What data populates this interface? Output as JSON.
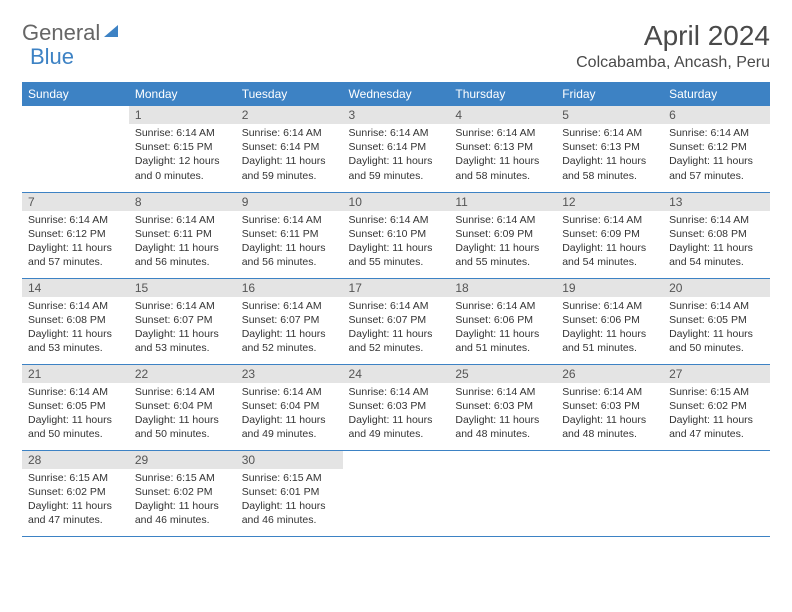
{
  "logo": {
    "general": "General",
    "blue": "Blue"
  },
  "title": "April 2024",
  "location": "Colcabamba, Ancash, Peru",
  "colors": {
    "header_bg": "#3d82c4",
    "header_text": "#ffffff",
    "daynum_bg": "#e4e4e4",
    "border": "#3d82c4",
    "text": "#333333"
  },
  "weekdays": [
    "Sunday",
    "Monday",
    "Tuesday",
    "Wednesday",
    "Thursday",
    "Friday",
    "Saturday"
  ],
  "weeks": [
    [
      {
        "day": "",
        "sunrise": "",
        "sunset": "",
        "daylight": ""
      },
      {
        "day": "1",
        "sunrise": "Sunrise: 6:14 AM",
        "sunset": "Sunset: 6:15 PM",
        "daylight": "Daylight: 12 hours and 0 minutes."
      },
      {
        "day": "2",
        "sunrise": "Sunrise: 6:14 AM",
        "sunset": "Sunset: 6:14 PM",
        "daylight": "Daylight: 11 hours and 59 minutes."
      },
      {
        "day": "3",
        "sunrise": "Sunrise: 6:14 AM",
        "sunset": "Sunset: 6:14 PM",
        "daylight": "Daylight: 11 hours and 59 minutes."
      },
      {
        "day": "4",
        "sunrise": "Sunrise: 6:14 AM",
        "sunset": "Sunset: 6:13 PM",
        "daylight": "Daylight: 11 hours and 58 minutes."
      },
      {
        "day": "5",
        "sunrise": "Sunrise: 6:14 AM",
        "sunset": "Sunset: 6:13 PM",
        "daylight": "Daylight: 11 hours and 58 minutes."
      },
      {
        "day": "6",
        "sunrise": "Sunrise: 6:14 AM",
        "sunset": "Sunset: 6:12 PM",
        "daylight": "Daylight: 11 hours and 57 minutes."
      }
    ],
    [
      {
        "day": "7",
        "sunrise": "Sunrise: 6:14 AM",
        "sunset": "Sunset: 6:12 PM",
        "daylight": "Daylight: 11 hours and 57 minutes."
      },
      {
        "day": "8",
        "sunrise": "Sunrise: 6:14 AM",
        "sunset": "Sunset: 6:11 PM",
        "daylight": "Daylight: 11 hours and 56 minutes."
      },
      {
        "day": "9",
        "sunrise": "Sunrise: 6:14 AM",
        "sunset": "Sunset: 6:11 PM",
        "daylight": "Daylight: 11 hours and 56 minutes."
      },
      {
        "day": "10",
        "sunrise": "Sunrise: 6:14 AM",
        "sunset": "Sunset: 6:10 PM",
        "daylight": "Daylight: 11 hours and 55 minutes."
      },
      {
        "day": "11",
        "sunrise": "Sunrise: 6:14 AM",
        "sunset": "Sunset: 6:09 PM",
        "daylight": "Daylight: 11 hours and 55 minutes."
      },
      {
        "day": "12",
        "sunrise": "Sunrise: 6:14 AM",
        "sunset": "Sunset: 6:09 PM",
        "daylight": "Daylight: 11 hours and 54 minutes."
      },
      {
        "day": "13",
        "sunrise": "Sunrise: 6:14 AM",
        "sunset": "Sunset: 6:08 PM",
        "daylight": "Daylight: 11 hours and 54 minutes."
      }
    ],
    [
      {
        "day": "14",
        "sunrise": "Sunrise: 6:14 AM",
        "sunset": "Sunset: 6:08 PM",
        "daylight": "Daylight: 11 hours and 53 minutes."
      },
      {
        "day": "15",
        "sunrise": "Sunrise: 6:14 AM",
        "sunset": "Sunset: 6:07 PM",
        "daylight": "Daylight: 11 hours and 53 minutes."
      },
      {
        "day": "16",
        "sunrise": "Sunrise: 6:14 AM",
        "sunset": "Sunset: 6:07 PM",
        "daylight": "Daylight: 11 hours and 52 minutes."
      },
      {
        "day": "17",
        "sunrise": "Sunrise: 6:14 AM",
        "sunset": "Sunset: 6:07 PM",
        "daylight": "Daylight: 11 hours and 52 minutes."
      },
      {
        "day": "18",
        "sunrise": "Sunrise: 6:14 AM",
        "sunset": "Sunset: 6:06 PM",
        "daylight": "Daylight: 11 hours and 51 minutes."
      },
      {
        "day": "19",
        "sunrise": "Sunrise: 6:14 AM",
        "sunset": "Sunset: 6:06 PM",
        "daylight": "Daylight: 11 hours and 51 minutes."
      },
      {
        "day": "20",
        "sunrise": "Sunrise: 6:14 AM",
        "sunset": "Sunset: 6:05 PM",
        "daylight": "Daylight: 11 hours and 50 minutes."
      }
    ],
    [
      {
        "day": "21",
        "sunrise": "Sunrise: 6:14 AM",
        "sunset": "Sunset: 6:05 PM",
        "daylight": "Daylight: 11 hours and 50 minutes."
      },
      {
        "day": "22",
        "sunrise": "Sunrise: 6:14 AM",
        "sunset": "Sunset: 6:04 PM",
        "daylight": "Daylight: 11 hours and 50 minutes."
      },
      {
        "day": "23",
        "sunrise": "Sunrise: 6:14 AM",
        "sunset": "Sunset: 6:04 PM",
        "daylight": "Daylight: 11 hours and 49 minutes."
      },
      {
        "day": "24",
        "sunrise": "Sunrise: 6:14 AM",
        "sunset": "Sunset: 6:03 PM",
        "daylight": "Daylight: 11 hours and 49 minutes."
      },
      {
        "day": "25",
        "sunrise": "Sunrise: 6:14 AM",
        "sunset": "Sunset: 6:03 PM",
        "daylight": "Daylight: 11 hours and 48 minutes."
      },
      {
        "day": "26",
        "sunrise": "Sunrise: 6:14 AM",
        "sunset": "Sunset: 6:03 PM",
        "daylight": "Daylight: 11 hours and 48 minutes."
      },
      {
        "day": "27",
        "sunrise": "Sunrise: 6:15 AM",
        "sunset": "Sunset: 6:02 PM",
        "daylight": "Daylight: 11 hours and 47 minutes."
      }
    ],
    [
      {
        "day": "28",
        "sunrise": "Sunrise: 6:15 AM",
        "sunset": "Sunset: 6:02 PM",
        "daylight": "Daylight: 11 hours and 47 minutes."
      },
      {
        "day": "29",
        "sunrise": "Sunrise: 6:15 AM",
        "sunset": "Sunset: 6:02 PM",
        "daylight": "Daylight: 11 hours and 46 minutes."
      },
      {
        "day": "30",
        "sunrise": "Sunrise: 6:15 AM",
        "sunset": "Sunset: 6:01 PM",
        "daylight": "Daylight: 11 hours and 46 minutes."
      },
      {
        "day": "",
        "sunrise": "",
        "sunset": "",
        "daylight": ""
      },
      {
        "day": "",
        "sunrise": "",
        "sunset": "",
        "daylight": ""
      },
      {
        "day": "",
        "sunrise": "",
        "sunset": "",
        "daylight": ""
      },
      {
        "day": "",
        "sunrise": "",
        "sunset": "",
        "daylight": ""
      }
    ]
  ]
}
